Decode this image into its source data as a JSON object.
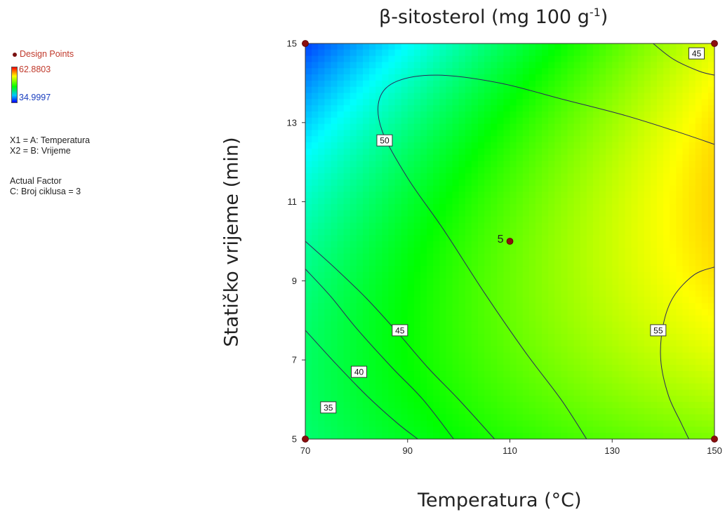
{
  "legend": {
    "design_points_label": "Design Points",
    "color_max": "62.8803",
    "color_min": "34.9997",
    "factor_x1": "X1 = A: Temperatura",
    "factor_x2": "X2 = B: Vrijeme",
    "actual_factor_title": "Actual Factor",
    "actual_factor_value": "C: Broj ciklusa = 3"
  },
  "chart_data": {
    "type": "contour",
    "title": "β-sitosterol (mg 100 g",
    "title_superscript": "-1",
    "title_close": ")",
    "xlabel": "Temperatura (°C)",
    "ylabel": "Statičko vrijeme (min)",
    "xlim": [
      70,
      150
    ],
    "ylim": [
      5,
      15
    ],
    "xticks": [
      "70",
      "90",
      "110",
      "130",
      "150"
    ],
    "yticks": [
      "5",
      "7",
      "9",
      "11",
      "13",
      "15"
    ],
    "color_scale": {
      "min": 34.9997,
      "max": 62.8803,
      "colors": [
        "#0000ff",
        "#00ffff",
        "#00ff00",
        "#ffff00",
        "#ff0000"
      ]
    },
    "contour_levels": [
      {
        "label": "35",
        "value": 35,
        "label_at": [
          74.5,
          5.8
        ],
        "path": [
          [
            70,
            7.75
          ],
          [
            76,
            6.9
          ],
          [
            82,
            6.1
          ],
          [
            88,
            5.4
          ],
          [
            92,
            5.0
          ]
        ]
      },
      {
        "label": "40",
        "value": 40,
        "label_at": [
          80.5,
          6.7
        ],
        "path": [
          [
            70,
            9.3
          ],
          [
            75,
            8.6
          ],
          [
            80,
            7.8
          ],
          [
            87,
            6.8
          ],
          [
            93,
            6.0
          ],
          [
            99,
            5.0
          ]
        ]
      },
      {
        "label": "45",
        "value": 45,
        "label_at": [
          88.5,
          7.75
        ],
        "path": [
          [
            70,
            10.0
          ],
          [
            76,
            9.3
          ],
          [
            82,
            8.55
          ],
          [
            88,
            7.7
          ],
          [
            94,
            6.8
          ],
          [
            100,
            6.0
          ],
          [
            107,
            5.0
          ]
        ]
      },
      {
        "label": "45",
        "value": 45,
        "label_at": [
          146.5,
          14.75
        ],
        "path": [
          [
            138,
            15.0
          ],
          [
            142,
            14.6
          ],
          [
            147,
            14.3
          ],
          [
            150,
            14.2
          ]
        ]
      },
      {
        "label": "50",
        "value": 50,
        "label_at": [
          85.5,
          12.55
        ],
        "path": [
          [
            125,
            5.0
          ],
          [
            120,
            6.0
          ],
          [
            113,
            7.2
          ],
          [
            105,
            8.7
          ],
          [
            97,
            10.3
          ],
          [
            90,
            11.6
          ],
          [
            85,
            12.8
          ],
          [
            84.5,
            13.6
          ],
          [
            88,
            14.05
          ],
          [
            96,
            14.2
          ],
          [
            108,
            14.0
          ],
          [
            120,
            13.6
          ],
          [
            132,
            13.2
          ],
          [
            142,
            12.8
          ],
          [
            150,
            12.45
          ]
        ]
      },
      {
        "label": "55",
        "value": 55,
        "label_at": [
          139,
          7.75
        ],
        "path": [
          [
            150,
            9.35
          ],
          [
            146,
            9.15
          ],
          [
            142,
            8.6
          ],
          [
            140,
            7.9
          ],
          [
            139.5,
            7.0
          ],
          [
            141,
            6.1
          ],
          [
            143.5,
            5.4
          ],
          [
            145,
            5.0
          ]
        ]
      }
    ],
    "design_points": [
      {
        "x": 70,
        "y": 15,
        "label": ""
      },
      {
        "x": 150,
        "y": 15,
        "label": ""
      },
      {
        "x": 110,
        "y": 10,
        "label": "5"
      },
      {
        "x": 70,
        "y": 5,
        "label": ""
      },
      {
        "x": 150,
        "y": 5,
        "label": ""
      }
    ],
    "grid": false
  }
}
